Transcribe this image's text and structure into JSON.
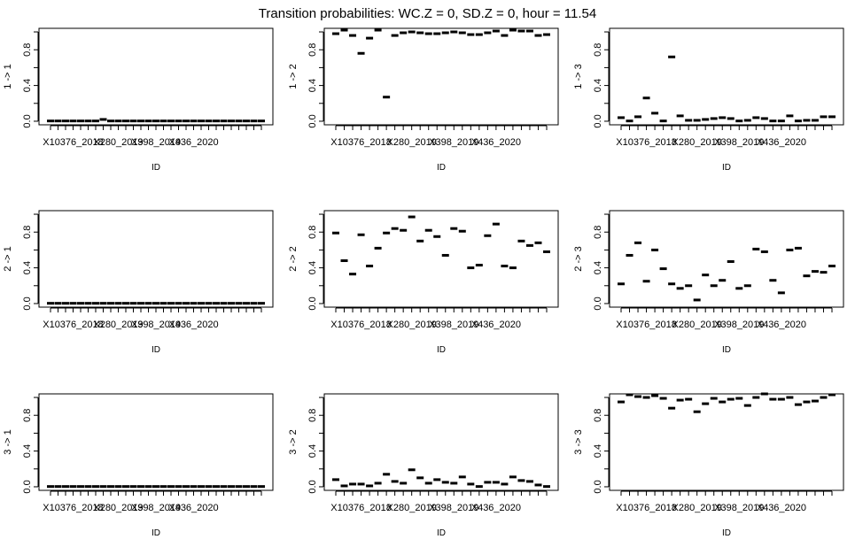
{
  "title": "Transition probabilities: WC.Z = 0, SD.Z = 0, hour = 11.54",
  "chart_data": [
    {
      "type": "boxplot",
      "ylabel": "1 -> 1",
      "xlabel": "ID",
      "x_tick_labels": [
        "X10376_2018",
        "X280_2019",
        "X398_2019",
        "X436_2020"
      ],
      "y_ticks": [
        "0.0",
        "0.4",
        "0.8"
      ],
      "ylim": [
        0,
        1
      ],
      "values": [
        0.003,
        0.003,
        0.003,
        0.003,
        0.003,
        0.003,
        0.003,
        0.02,
        0.003,
        0.003,
        0.003,
        0.003,
        0.003,
        0.003,
        0.003,
        0.003,
        0.003,
        0.003,
        0.003,
        0.003,
        0.003,
        0.003,
        0.003,
        0.003,
        0.003,
        0.003,
        0.003,
        0.003,
        0.003
      ]
    },
    {
      "type": "boxplot",
      "ylabel": "1 -> 2",
      "xlabel": "ID",
      "x_tick_labels": [
        "X10376_2018",
        "X280_2019",
        "X398_2019",
        "X436_2020"
      ],
      "y_ticks": [
        "0.0",
        "0.4",
        "0.8"
      ],
      "ylim": [
        0,
        1
      ],
      "values": [
        0.98,
        1.02,
        0.96,
        0.76,
        0.93,
        1.02,
        0.27,
        0.96,
        0.99,
        1.0,
        0.99,
        0.98,
        0.98,
        0.99,
        1.0,
        0.99,
        0.97,
        0.97,
        0.99,
        1.01,
        0.96,
        1.02,
        1.01,
        1.01,
        0.96,
        0.97
      ]
    },
    {
      "type": "boxplot",
      "ylabel": "1 -> 3",
      "xlabel": "ID",
      "x_tick_labels": [
        "X10376_2018",
        "X280_2019",
        "X398_2019",
        "X436_2020"
      ],
      "y_ticks": [
        "0.0",
        "0.4",
        "0.8"
      ],
      "ylim": [
        0,
        1
      ],
      "values": [
        0.04,
        0.003,
        0.05,
        0.26,
        0.09,
        0.003,
        0.72,
        0.06,
        0.01,
        0.01,
        0.02,
        0.03,
        0.04,
        0.03,
        0.003,
        0.01,
        0.04,
        0.03,
        0.003,
        0.003,
        0.06,
        0.003,
        0.01,
        0.01,
        0.05,
        0.05
      ]
    },
    {
      "type": "boxplot",
      "ylabel": "2 -> 1",
      "xlabel": "ID",
      "x_tick_labels": [
        "X10376_2018",
        "X280_2019",
        "X398_2019",
        "X436_2020"
      ],
      "y_ticks": [
        "0.0",
        "0.4",
        "0.8"
      ],
      "ylim": [
        0,
        1
      ],
      "values": [
        0.003,
        0.003,
        0.003,
        0.003,
        0.003,
        0.003,
        0.003,
        0.003,
        0.003,
        0.003,
        0.003,
        0.003,
        0.003,
        0.003,
        0.003,
        0.003,
        0.003,
        0.003,
        0.003,
        0.003,
        0.003,
        0.003,
        0.003,
        0.003,
        0.003,
        0.003,
        0.003,
        0.003,
        0.003
      ]
    },
    {
      "type": "boxplot",
      "ylabel": "2 -> 2",
      "xlabel": "ID",
      "x_tick_labels": [
        "X10376_2018",
        "X280_2019",
        "X398_2019",
        "X436_2020"
      ],
      "y_ticks": [
        "0.0",
        "0.4",
        "0.8"
      ],
      "ylim": [
        0,
        1
      ],
      "values": [
        0.79,
        0.48,
        0.33,
        0.77,
        0.42,
        0.62,
        0.79,
        0.84,
        0.82,
        0.97,
        0.7,
        0.82,
        0.75,
        0.54,
        0.84,
        0.81,
        0.4,
        0.43,
        0.76,
        0.89,
        0.42,
        0.4,
        0.7,
        0.65,
        0.68,
        0.58
      ]
    },
    {
      "type": "boxplot",
      "ylabel": "2 -> 3",
      "xlabel": "ID",
      "x_tick_labels": [
        "X10376_2018",
        "X280_2019",
        "X398_2019",
        "X436_2020"
      ],
      "y_ticks": [
        "0.0",
        "0.4",
        "0.8"
      ],
      "ylim": [
        0,
        1
      ],
      "values": [
        0.22,
        0.54,
        0.68,
        0.25,
        0.6,
        0.39,
        0.22,
        0.17,
        0.2,
        0.04,
        0.32,
        0.2,
        0.26,
        0.47,
        0.17,
        0.2,
        0.61,
        0.58,
        0.26,
        0.12,
        0.6,
        0.62,
        0.31,
        0.36,
        0.35,
        0.42
      ]
    },
    {
      "type": "boxplot",
      "ylabel": "3 -> 1",
      "xlabel": "ID",
      "x_tick_labels": [
        "X10376_2018",
        "X280_2019",
        "X398_2019",
        "X436_2020"
      ],
      "y_ticks": [
        "0.0",
        "0.4",
        "0.8"
      ],
      "ylim": [
        0,
        1
      ],
      "values": [
        0.003,
        0.003,
        0.003,
        0.003,
        0.003,
        0.003,
        0.003,
        0.003,
        0.003,
        0.003,
        0.003,
        0.003,
        0.003,
        0.003,
        0.003,
        0.003,
        0.003,
        0.003,
        0.003,
        0.003,
        0.003,
        0.003,
        0.003,
        0.003,
        0.003,
        0.003,
        0.003,
        0.003,
        0.003
      ]
    },
    {
      "type": "boxplot",
      "ylabel": "3 -> 2",
      "xlabel": "ID",
      "x_tick_labels": [
        "X10376_2018",
        "X280_2019",
        "X398_2019",
        "X436_2020"
      ],
      "y_ticks": [
        "0.0",
        "0.4",
        "0.8"
      ],
      "ylim": [
        0,
        1
      ],
      "values": [
        0.08,
        0.01,
        0.03,
        0.03,
        0.01,
        0.04,
        0.14,
        0.06,
        0.04,
        0.19,
        0.1,
        0.04,
        0.08,
        0.05,
        0.04,
        0.11,
        0.03,
        0.003,
        0.05,
        0.05,
        0.03,
        0.11,
        0.07,
        0.06,
        0.02,
        0.003
      ]
    },
    {
      "type": "boxplot",
      "ylabel": "3 -> 3",
      "xlabel": "ID",
      "x_tick_labels": [
        "X10376_2018",
        "X280_2019",
        "X398_2019",
        "X436_2020"
      ],
      "y_ticks": [
        "0.0",
        "0.4",
        "0.8"
      ],
      "ylim": [
        0,
        1
      ],
      "values": [
        0.95,
        1.03,
        1.01,
        1.0,
        1.02,
        0.99,
        0.88,
        0.97,
        0.98,
        0.84,
        0.93,
        0.99,
        0.95,
        0.98,
        0.99,
        0.91,
        1.0,
        1.04,
        0.98,
        0.98,
        1.0,
        0.92,
        0.95,
        0.96,
        1.0,
        1.03
      ]
    }
  ]
}
